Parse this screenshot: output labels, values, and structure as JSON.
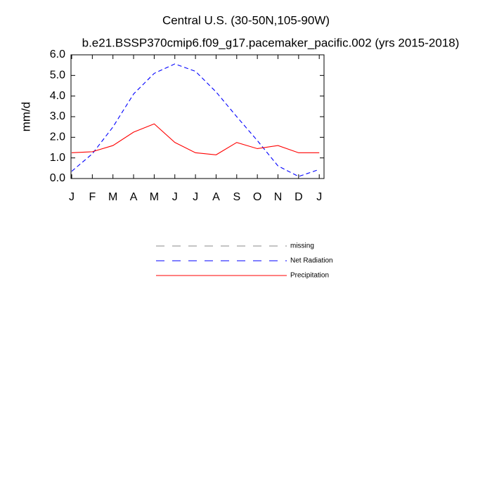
{
  "chart_data": {
    "type": "line",
    "title": "Central U.S. (30-50N,105-90W)",
    "subtitle": "b.e21.BSSP370cmip6.f09_g17.pacemaker_pacific.002 (yrs 2015-2018)",
    "y_label": "mm/d",
    "categories": [
      "J",
      "F",
      "M",
      "A",
      "M",
      "J",
      "J",
      "A",
      "S",
      "O",
      "N",
      "D",
      "J"
    ],
    "series": [
      {
        "name": "missing",
        "color": "#888888",
        "dash": true,
        "values": [
          null,
          null,
          null,
          null,
          null,
          null,
          null,
          null,
          null,
          null,
          null,
          null,
          null
        ]
      },
      {
        "name": "Net Radiation",
        "color": "#0000ff",
        "dash": true,
        "values": [
          0.35,
          1.2,
          2.5,
          4.1,
          5.1,
          5.56,
          5.2,
          4.2,
          3.0,
          1.84,
          0.61,
          0.1,
          0.44
        ]
      },
      {
        "name": "Precipitation",
        "color": "#ff0000",
        "dash": false,
        "values": [
          1.25,
          1.3,
          1.6,
          2.25,
          2.65,
          1.75,
          1.25,
          1.15,
          1.75,
          1.45,
          1.6,
          1.25,
          1.25
        ]
      }
    ],
    "ylim": [
      0,
      6
    ],
    "yticks": [
      {
        "value": 0,
        "label": "0.0"
      },
      {
        "value": 1,
        "label": "1.0"
      },
      {
        "value": 2,
        "label": "2.0"
      },
      {
        "value": 3,
        "label": "3.0"
      },
      {
        "value": 4,
        "label": "4.0"
      },
      {
        "value": 5,
        "label": "5.0"
      },
      {
        "value": 6,
        "label": "6.0"
      }
    ],
    "grid": false
  }
}
